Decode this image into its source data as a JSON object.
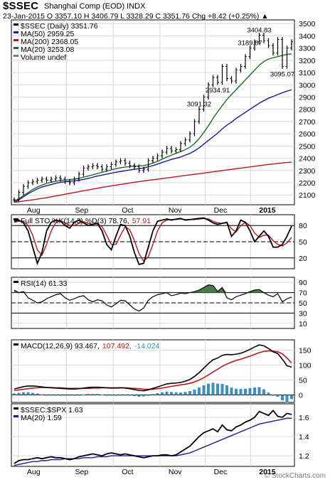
{
  "header": {
    "symbol": "$SSEC",
    "subtitle": "Shanghai Comp (EOD) INDX",
    "ohlc": "23-Jan-2015    O 3357.10  H 3406.79  L 3328.29  C 3351.76  Chg +8.42 (+0.25%) ▲",
    "watermark": "© StockCharts.com"
  },
  "colors": {
    "price": "#000000",
    "ma50": "#1a1a9c",
    "ma200": "#c0141c",
    "ma20": "#1f6e1f",
    "rsi_fill": "#4a7a4a",
    "macd_hist": "#3b8ec8",
    "ma20_spx": "#1a1a9c"
  },
  "chart_data": [
    {
      "type": "line",
      "panel": "price",
      "legend": [
        {
          "name": "$SSEC (Daily) 3351.76",
          "color": "#000000"
        },
        {
          "name": "MA(50) 2959.25",
          "color": "#1a1a9c"
        },
        {
          "name": "MA(200) 2368.05",
          "color": "#c0141c"
        },
        {
          "name": "MA(20) 3253.08",
          "color": "#1f6e1f"
        },
        {
          "name": "Volume undef",
          "color": "#7a7a7a"
        }
      ],
      "y_ticks": [
        3500,
        3400,
        3300,
        3200,
        3100,
        3000,
        2900,
        2800,
        2700,
        2600,
        2500,
        2400,
        2300,
        2200,
        2100
      ],
      "ylim": [
        2020,
        3530
      ],
      "annotations": [
        "3404.83",
        "3189.87",
        "3091.32",
        "2934.91",
        "3095.07"
      ],
      "x_labels": [
        "Aug",
        "Sep",
        "Oct",
        "Nov",
        "Dec",
        "2015"
      ],
      "series": [
        {
          "name": "$SSEC (Daily) 3351.76",
          "values": [
            2060,
            2120,
            2170,
            2200,
            2210,
            2220,
            2230,
            2220,
            2230,
            2240,
            2230,
            2210,
            2200,
            2230,
            2270,
            2320,
            2330,
            2340,
            2330,
            2310,
            2330,
            2350,
            2370,
            2380,
            2360,
            2340,
            2330,
            2300,
            2310,
            2380,
            2400,
            2420,
            2450,
            2480,
            2460,
            2470,
            2520,
            2550,
            2600,
            2700,
            2800,
            2900,
            3000,
            3060,
            3020,
            3150,
            3050,
            3030,
            3120,
            3150,
            3230,
            3300,
            3350,
            3404.83,
            3360,
            3320,
            3260,
            3370,
            3150,
            3300,
            3351.76
          ]
        },
        {
          "name": "MA(50) 2959.25",
          "values": [
            2040,
            2060,
            2085,
            2110,
            2130,
            2150,
            2165,
            2175,
            2185,
            2195,
            2203,
            2208,
            2212,
            2215,
            2220,
            2227,
            2235,
            2245,
            2255,
            2262,
            2270,
            2278,
            2285,
            2292,
            2298,
            2304,
            2310,
            2315,
            2320,
            2330,
            2340,
            2352,
            2365,
            2378,
            2390,
            2400,
            2410,
            2425,
            2440,
            2460,
            2485,
            2515,
            2545,
            2575,
            2605,
            2640,
            2670,
            2695,
            2725,
            2750,
            2775,
            2800,
            2825,
            2850,
            2870,
            2890,
            2905,
            2920,
            2935,
            2948,
            2959.25
          ]
        },
        {
          "name": "MA(200) 2368.05",
          "values": [
            2040,
            2045,
            2050,
            2055,
            2060,
            2066,
            2072,
            2078,
            2085,
            2092,
            2099,
            2106,
            2113,
            2120,
            2127,
            2134,
            2141,
            2148,
            2155,
            2162,
            2168,
            2174,
            2180,
            2186,
            2192,
            2198,
            2204,
            2209,
            2214,
            2219,
            2224,
            2229,
            2234,
            2239,
            2244,
            2249,
            2254,
            2259,
            2264,
            2269,
            2274,
            2279,
            2284,
            2289,
            2294,
            2299,
            2304,
            2309,
            2314,
            2319,
            2324,
            2329,
            2334,
            2339,
            2344,
            2349,
            2353,
            2357,
            2361,
            2365,
            2368.05
          ]
        },
        {
          "name": "MA(20) 3253.08",
          "values": [
            2050,
            2070,
            2095,
            2120,
            2145,
            2165,
            2180,
            2195,
            2205,
            2212,
            2217,
            2222,
            2226,
            2230,
            2236,
            2245,
            2255,
            2265,
            2275,
            2285,
            2295,
            2305,
            2315,
            2322,
            2328,
            2332,
            2335,
            2337,
            2340,
            2348,
            2360,
            2375,
            2392,
            2410,
            2425,
            2440,
            2455,
            2470,
            2490,
            2520,
            2560,
            2610,
            2665,
            2725,
            2780,
            2830,
            2880,
            2920,
            2960,
            3000,
            3040,
            3080,
            3120,
            3160,
            3190,
            3210,
            3220,
            3230,
            3240,
            3248,
            3253.08
          ]
        }
      ]
    },
    {
      "type": "line",
      "panel": "full_sto",
      "legend": [
        {
          "name": "Full STO %K(14,3) %D(3) 78.76,",
          "color": "#000000"
        },
        {
          "name": "57.91",
          "color": "#c0141c"
        }
      ],
      "y_ticks": [
        80,
        50,
        20
      ],
      "ylim": [
        0,
        100
      ],
      "series": [
        {
          "name": "%K",
          "values": [
            88,
            90,
            85,
            70,
            40,
            10,
            30,
            70,
            86,
            90,
            88,
            80,
            75,
            86,
            90,
            85,
            80,
            82,
            84,
            70,
            45,
            35,
            60,
            82,
            80,
            60,
            30,
            8,
            10,
            40,
            70,
            88,
            90,
            92,
            90,
            92,
            93,
            90,
            91,
            92,
            93,
            94,
            90,
            85,
            82,
            84,
            86,
            60,
            70,
            90,
            86,
            70,
            50,
            60,
            70,
            60,
            40,
            40,
            45,
            60,
            78.76
          ]
        },
        {
          "name": "%D",
          "values": [
            86,
            88,
            87,
            80,
            62,
            35,
            25,
            45,
            70,
            86,
            89,
            85,
            80,
            80,
            84,
            87,
            84,
            82,
            83,
            78,
            62,
            45,
            45,
            62,
            78,
            72,
            52,
            28,
            14,
            22,
            45,
            70,
            85,
            90,
            91,
            91,
            92,
            91,
            91,
            91,
            92,
            93,
            92,
            88,
            85,
            84,
            85,
            74,
            68,
            80,
            86,
            80,
            66,
            58,
            62,
            62,
            52,
            45,
            42,
            48,
            57.91
          ]
        }
      ]
    },
    {
      "type": "area",
      "panel": "rsi",
      "legend": [
        {
          "name": "RSI(14) 61.33",
          "color": "#000000"
        }
      ],
      "y_ticks": [
        90,
        70,
        50,
        30,
        10
      ],
      "ylim": [
        0,
        100
      ],
      "series": [
        {
          "name": "RSI(14) 61.33",
          "values": [
            75,
            70,
            72,
            60,
            55,
            50,
            52,
            58,
            62,
            66,
            68,
            60,
            55,
            58,
            62,
            64,
            56,
            52,
            56,
            54,
            46,
            42,
            48,
            55,
            54,
            46,
            38,
            34,
            40,
            55,
            62,
            66,
            68,
            70,
            64,
            66,
            69,
            68,
            70,
            72,
            75,
            80,
            85,
            84,
            72,
            80,
            60,
            56,
            62,
            65,
            68,
            72,
            75,
            76,
            70,
            65,
            62,
            68,
            52,
            58,
            61.33
          ]
        }
      ]
    },
    {
      "type": "line",
      "panel": "macd",
      "legend": [
        {
          "name": "MACD(12,26,9) 93.467,",
          "color": "#000000"
        },
        {
          "name": "107.492,",
          "color": "#c0141c"
        },
        {
          "name": "-14.024",
          "color": "#3b8ec8"
        }
      ],
      "y_ticks": [
        150,
        100,
        50,
        0
      ],
      "ylim": [
        -25,
        185
      ],
      "series": [
        {
          "name": "MACD",
          "values": [
            20,
            24,
            28,
            30,
            30,
            29,
            27,
            25,
            24,
            23,
            22,
            21,
            20,
            20,
            21,
            23,
            25,
            26,
            26,
            25,
            24,
            23,
            23,
            24,
            23,
            21,
            18,
            15,
            14,
            17,
            22,
            27,
            32,
            37,
            39,
            40,
            42,
            46,
            52,
            62,
            75,
            90,
            105,
            118,
            124,
            133,
            136,
            135,
            137,
            140,
            146,
            153,
            161,
            168,
            165,
            156,
            145,
            139,
            120,
            98,
            93.467
          ]
        },
        {
          "name": "Signal",
          "values": [
            15,
            17,
            19,
            21,
            23,
            24,
            25,
            25,
            25,
            24,
            24,
            23,
            22,
            22,
            22,
            22,
            22,
            23,
            23,
            24,
            24,
            24,
            24,
            24,
            24,
            23,
            22,
            21,
            19,
            19,
            19,
            21,
            23,
            26,
            29,
            31,
            34,
            36,
            39,
            44,
            50,
            58,
            67,
            77,
            86,
            96,
            104,
            110,
            116,
            120,
            125,
            130,
            136,
            142,
            146,
            148,
            147,
            145,
            138,
            124,
            107.492
          ]
        },
        {
          "name": "Histogram",
          "values": [
            5,
            7,
            9,
            9,
            7,
            5,
            2,
            0,
            -1,
            -1,
            -2,
            -2,
            -2,
            -2,
            -1,
            1,
            3,
            3,
            3,
            1,
            0,
            -1,
            -1,
            0,
            -1,
            -2,
            -4,
            -6,
            -5,
            -2,
            3,
            6,
            9,
            11,
            10,
            9,
            8,
            10,
            13,
            18,
            25,
            32,
            38,
            41,
            38,
            37,
            32,
            25,
            21,
            20,
            21,
            23,
            25,
            26,
            19,
            8,
            -2,
            -6,
            -18,
            -26,
            -14.024
          ]
        }
      ]
    },
    {
      "type": "line",
      "panel": "ratio",
      "legend": [
        {
          "name": "$SSEC:$SPX 1.63",
          "color": "#000000"
        },
        {
          "name": "MA(20) 1.59",
          "color": "#1a1a9c"
        }
      ],
      "y_ticks": [
        1.6,
        1.4,
        1.2
      ],
      "ylim": [
        1.09,
        1.74
      ],
      "x_labels": [
        "Aug",
        "Sep",
        "Oct",
        "Nov",
        "Dec",
        "2015"
      ],
      "series": [
        {
          "name": "$SSEC:$SPX 1.63",
          "values": [
            1.12,
            1.15,
            1.16,
            1.16,
            1.17,
            1.18,
            1.17,
            1.18,
            1.19,
            1.18,
            1.18,
            1.17,
            1.16,
            1.17,
            1.19,
            1.2,
            1.21,
            1.22,
            1.21,
            1.2,
            1.22,
            1.23,
            1.22,
            1.21,
            1.22,
            1.21,
            1.2,
            1.19,
            1.18,
            1.19,
            1.2,
            1.2,
            1.21,
            1.21,
            1.2,
            1.21,
            1.24,
            1.27,
            1.3,
            1.35,
            1.4,
            1.44,
            1.46,
            1.48,
            1.45,
            1.52,
            1.47,
            1.46,
            1.5,
            1.52,
            1.55,
            1.57,
            1.6,
            1.66,
            1.64,
            1.62,
            1.67,
            1.61,
            1.6,
            1.64,
            1.63
          ]
        },
        {
          "name": "MA(20) 1.59",
          "values": [
            1.1,
            1.11,
            1.12,
            1.13,
            1.14,
            1.14,
            1.15,
            1.15,
            1.16,
            1.16,
            1.16,
            1.17,
            1.17,
            1.17,
            1.17,
            1.18,
            1.18,
            1.18,
            1.19,
            1.19,
            1.19,
            1.2,
            1.2,
            1.2,
            1.2,
            1.2,
            1.2,
            1.2,
            1.2,
            1.2,
            1.2,
            1.2,
            1.2,
            1.2,
            1.2,
            1.2,
            1.21,
            1.22,
            1.23,
            1.25,
            1.27,
            1.29,
            1.31,
            1.33,
            1.35,
            1.37,
            1.39,
            1.41,
            1.43,
            1.45,
            1.47,
            1.49,
            1.51,
            1.53,
            1.54,
            1.55,
            1.56,
            1.57,
            1.58,
            1.59,
            1.59
          ]
        }
      ]
    }
  ]
}
